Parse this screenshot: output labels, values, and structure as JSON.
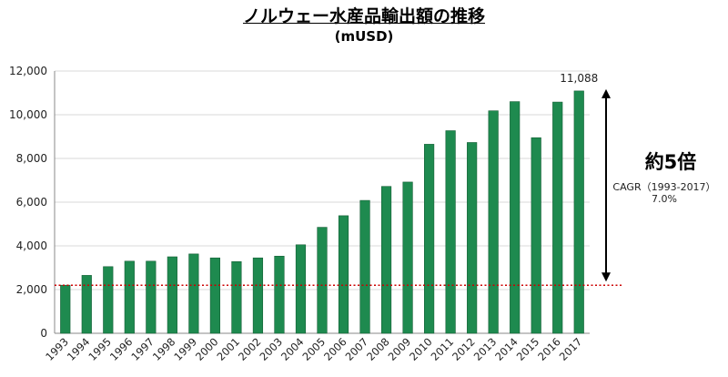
{
  "chart_data": {
    "type": "bar",
    "title": "ノルウェー水産品輸出額の推移",
    "subtitle": "(mUSD)",
    "categories": [
      "1993",
      "1994",
      "1995",
      "1996",
      "1997",
      "1998",
      "1999",
      "2000",
      "2001",
      "2002",
      "2003",
      "2004",
      "2005",
      "2006",
      "2007",
      "2008",
      "2009",
      "2010",
      "2011",
      "2012",
      "2013",
      "2014",
      "2015",
      "2016",
      "2017"
    ],
    "values": [
      2200,
      2650,
      3050,
      3300,
      3300,
      3500,
      3630,
      3450,
      3280,
      3450,
      3530,
      4050,
      4850,
      5380,
      6080,
      6720,
      6920,
      8650,
      9270,
      8730,
      10180,
      10600,
      8950,
      10580,
      11088
    ],
    "ylim": [
      0,
      12000
    ],
    "yticks": [
      "0",
      "2,000",
      "4,000",
      "6,000",
      "8,000",
      "10,000",
      "12,000"
    ],
    "ytick_values": [
      0,
      2000,
      4000,
      6000,
      8000,
      10000,
      12000
    ],
    "bar_color": "#1e8a4f",
    "baseline_value": 2200,
    "baseline_color": "#cc0000",
    "last_bar_label": "11,088",
    "grid": true,
    "annotation": {
      "headline": "約5倍",
      "cagr_label": "CAGR（1993-2017）",
      "cagr_value": "7.0%"
    }
  }
}
